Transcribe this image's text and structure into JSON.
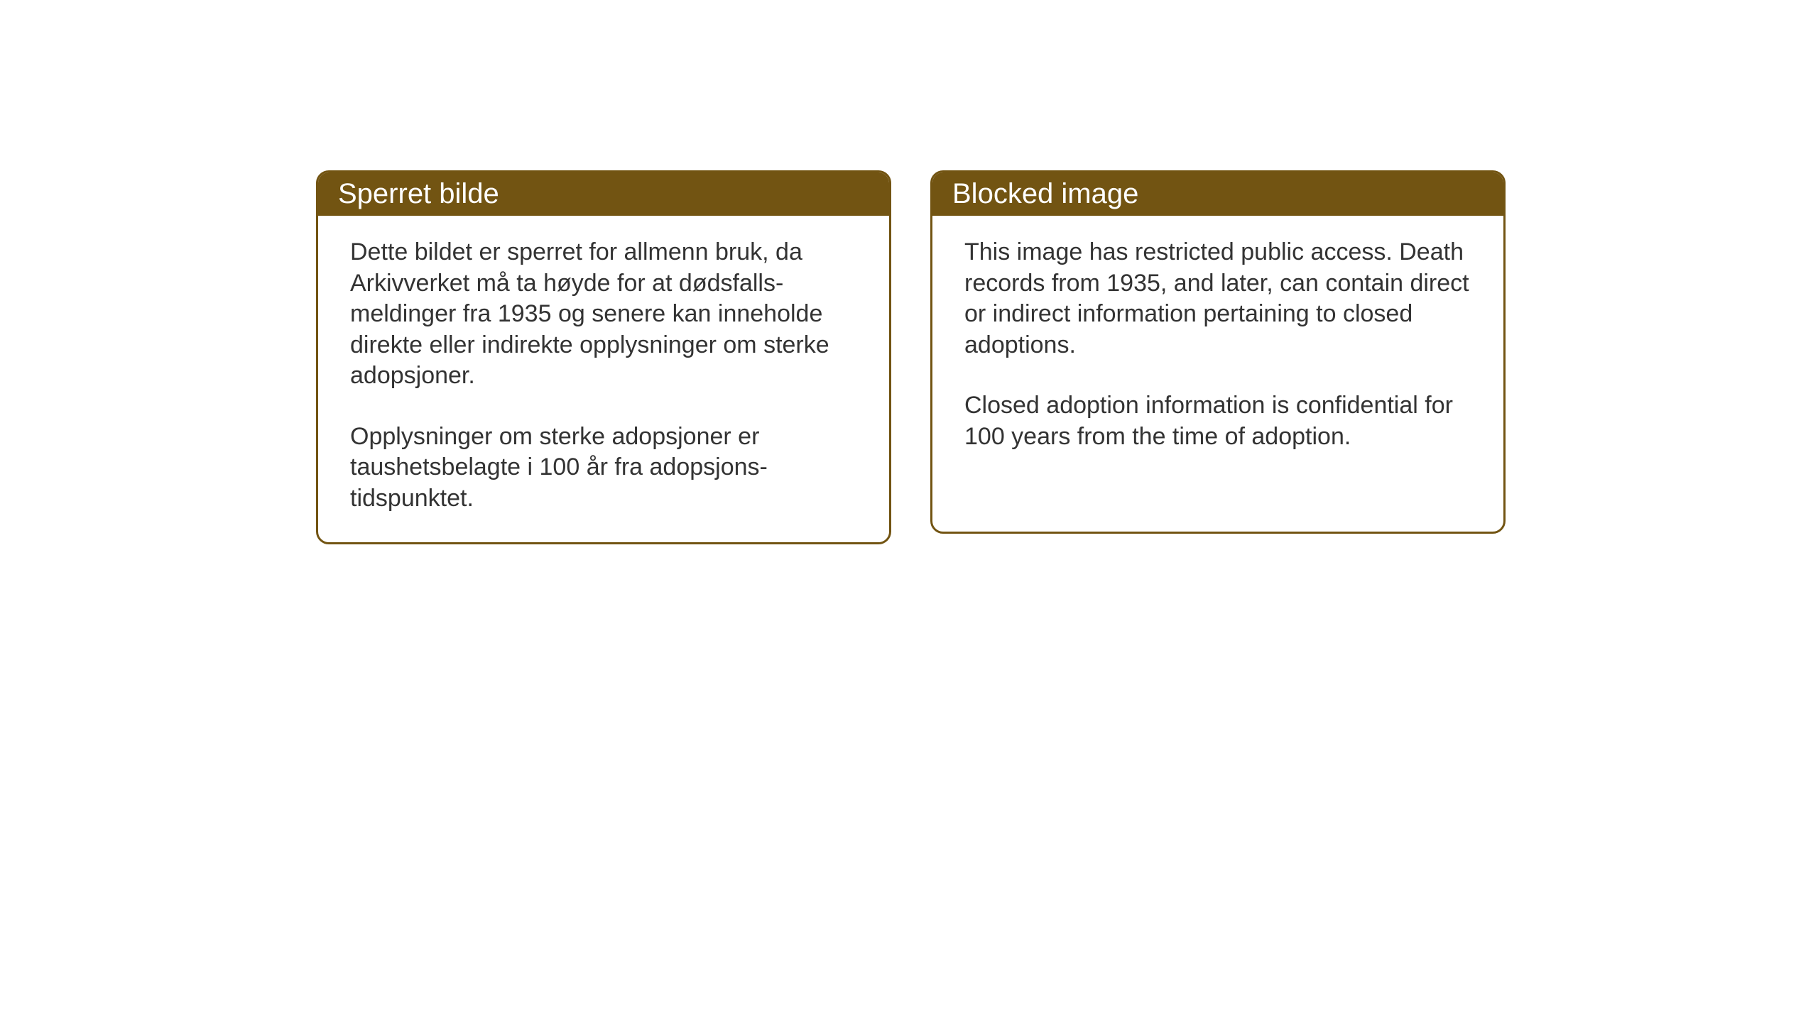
{
  "cards": {
    "norwegian": {
      "title": "Sperret bilde",
      "paragraph1": "Dette bildet er sperret for allmenn bruk, da Arkivverket må ta høyde for at dødsfalls-meldinger fra 1935 og senere kan inneholde direkte eller indirekte opplysninger om sterke adopsjoner.",
      "paragraph2": "Opplysninger om sterke adopsjoner er taushetsbelagte i 100 år fra adopsjons-tidspunktet."
    },
    "english": {
      "title": "Blocked image",
      "paragraph1": "This image has restricted public access. Death records from 1935, and later, can contain direct or indirect information pertaining to closed adoptions.",
      "paragraph2": "Closed adoption information is confidential for 100 years from the time of adoption."
    }
  },
  "styling": {
    "header_bg_color": "#725412",
    "header_text_color": "#ffffff",
    "border_color": "#725412",
    "body_text_color": "#333333",
    "page_bg_color": "#ffffff",
    "border_radius": 18,
    "border_width": 3,
    "title_fontsize": 40,
    "body_fontsize": 34
  }
}
